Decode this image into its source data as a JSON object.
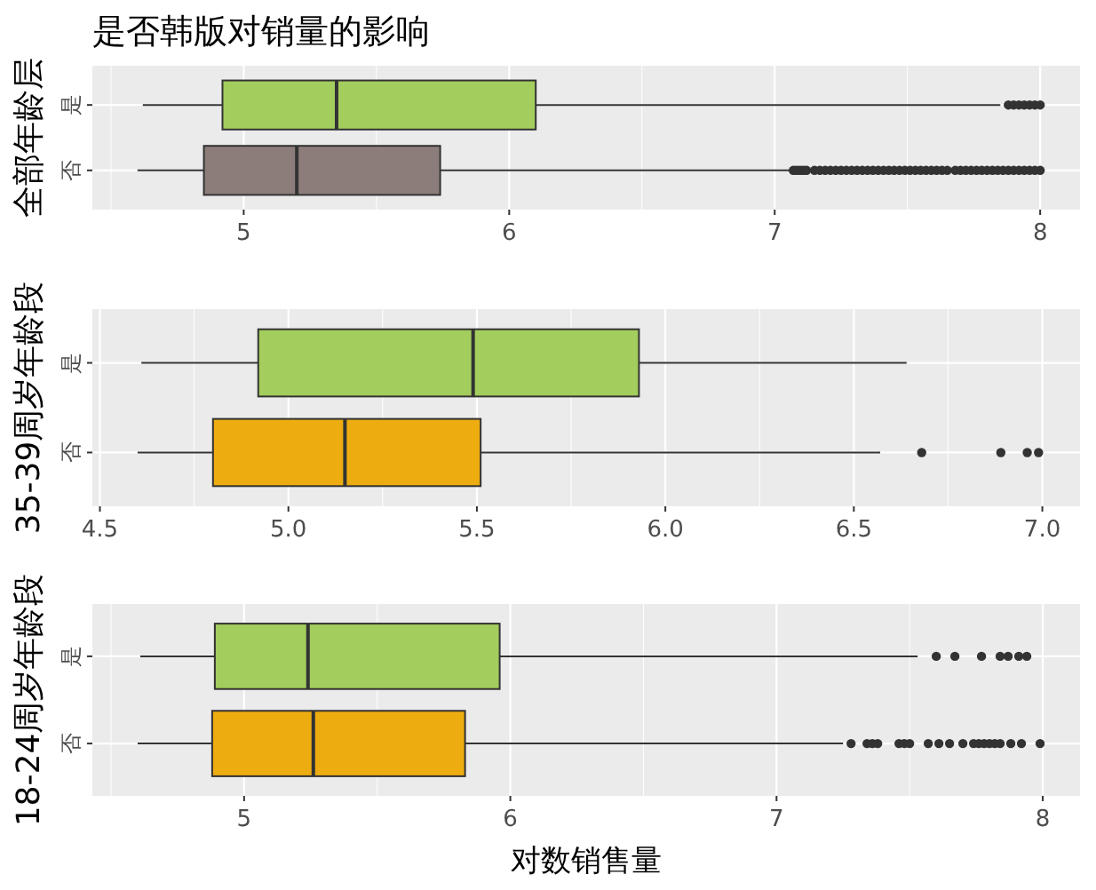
{
  "chart_data": [
    {
      "type": "box",
      "orientation": "horizontal",
      "title": "是否韩版对销量的影响",
      "ylabel": "全部年龄层",
      "categories": [
        "是",
        "否"
      ],
      "colors": [
        "#a3cd5c",
        "#8c7d7a"
      ],
      "grid": true,
      "xlim": [
        4.43,
        8.15
      ],
      "xticks": [
        5,
        6,
        7,
        8
      ],
      "boxes": [
        {
          "low": 4.62,
          "q1": 4.92,
          "median": 5.35,
          "q3": 6.1,
          "high": 7.85,
          "outliers": [
            7.88,
            7.9,
            7.92,
            7.94,
            7.96,
            7.98,
            8.0
          ]
        },
        {
          "low": 4.6,
          "q1": 4.85,
          "median": 5.2,
          "q3": 5.74,
          "high": 7.06,
          "outliers": [
            7.07,
            7.08,
            7.09,
            7.1,
            7.11,
            7.12,
            7.15,
            7.17,
            7.19,
            7.21,
            7.23,
            7.25,
            7.27,
            7.29,
            7.31,
            7.33,
            7.35,
            7.37,
            7.39,
            7.41,
            7.43,
            7.45,
            7.47,
            7.49,
            7.51,
            7.53,
            7.55,
            7.57,
            7.59,
            7.61,
            7.63,
            7.65,
            7.68,
            7.7,
            7.72,
            7.74,
            7.76,
            7.78,
            7.8,
            7.82,
            7.84,
            7.86,
            7.88,
            7.9,
            7.92,
            7.94,
            7.96,
            7.98,
            8.0
          ]
        }
      ]
    },
    {
      "type": "box",
      "orientation": "horizontal",
      "ylabel": "35-39周岁年龄段",
      "categories": [
        "是",
        "否"
      ],
      "colors": [
        "#a3cd5c",
        "#edac10"
      ],
      "grid": true,
      "xlim": [
        4.48,
        7.1
      ],
      "xticks": [
        4.5,
        {
          "value": 5,
          "label": "5.0"
        },
        5.5,
        {
          "value": 6,
          "label": "6.0"
        },
        6.5,
        {
          "value": 7,
          "label": "7.0"
        }
      ],
      "boxes": [
        {
          "low": 4.61,
          "q1": 4.92,
          "median": 5.49,
          "q3": 5.93,
          "high": 6.64
        },
        {
          "low": 4.6,
          "q1": 4.8,
          "median": 5.15,
          "q3": 5.51,
          "high": 6.57,
          "outliers": [
            6.68,
            6.89,
            6.96,
            6.99
          ]
        }
      ]
    },
    {
      "type": "box",
      "orientation": "horizontal",
      "ylabel": "18-24周岁年龄段",
      "xlabel": "对数销售量",
      "categories": [
        "是",
        "否"
      ],
      "colors": [
        "#a3cd5c",
        "#edac10"
      ],
      "grid": true,
      "xlim": [
        4.43,
        8.14
      ],
      "xticks": [
        5,
        6,
        7,
        8
      ],
      "boxes": [
        {
          "low": 4.61,
          "q1": 4.89,
          "median": 5.24,
          "q3": 5.96,
          "high": 7.53,
          "outliers": [
            7.6,
            7.67,
            7.77,
            7.84,
            7.87,
            7.91,
            7.94
          ]
        },
        {
          "low": 4.6,
          "q1": 4.88,
          "median": 5.26,
          "q3": 5.83,
          "high": 7.25,
          "outliers": [
            7.28,
            7.34,
            7.36,
            7.38,
            7.46,
            7.48,
            7.5,
            7.57,
            7.61,
            7.65,
            7.7,
            7.74,
            7.76,
            7.78,
            7.8,
            7.82,
            7.84,
            7.88,
            7.92,
            7.99
          ]
        }
      ]
    }
  ]
}
